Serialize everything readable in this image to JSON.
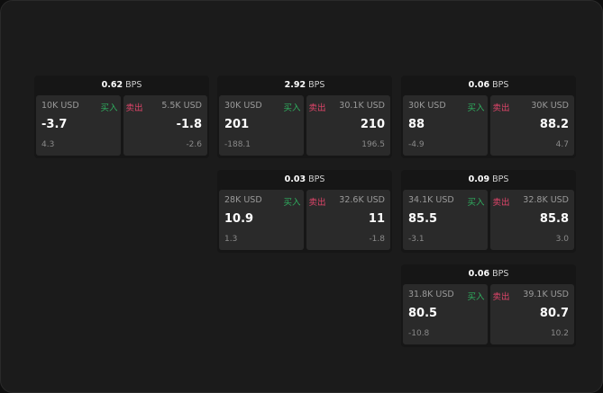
{
  "unit": "BPS",
  "buy_label": "买入",
  "sell_label": "卖出",
  "widgets": [
    {
      "spread": "0.62",
      "buy_qty": "10K USD",
      "buy_price": "-3.7",
      "buy_change": "4.3",
      "sell_qty": "5.5K USD",
      "sell_price": "-1.8",
      "sell_change": "-2.6"
    },
    {
      "spread": "2.92",
      "buy_qty": "30K USD",
      "buy_price": "201",
      "buy_change": "-188.1",
      "sell_qty": "30.1K USD",
      "sell_price": "210",
      "sell_change": "196.5"
    },
    {
      "spread": "0.06",
      "buy_qty": "30K USD",
      "buy_price": "88",
      "buy_change": "-4.9",
      "sell_qty": "30K USD",
      "sell_price": "88.2",
      "sell_change": "4.7"
    },
    {
      "spread": "0.03",
      "buy_qty": "28K USD",
      "buy_price": "10.9",
      "buy_change": "1.3",
      "sell_qty": "32.6K USD",
      "sell_price": "11",
      "sell_change": "-1.8"
    },
    {
      "spread": "0.09",
      "buy_qty": "34.1K USD",
      "buy_price": "85.5",
      "buy_change": "-3.1",
      "sell_qty": "32.8K USD",
      "sell_price": "85.8",
      "sell_change": "3.0"
    },
    {
      "spread": "0.06",
      "buy_qty": "31.8K USD",
      "buy_price": "80.5",
      "buy_change": "-10.8",
      "sell_qty": "39.1K USD",
      "sell_price": "80.7",
      "sell_change": "10.2"
    }
  ]
}
